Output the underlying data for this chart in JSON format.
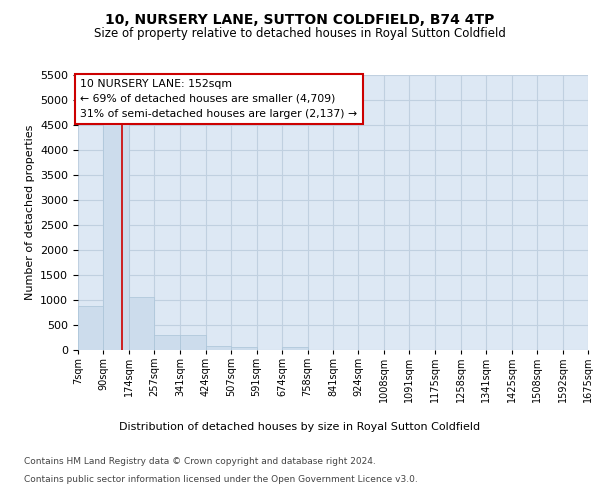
{
  "title": "10, NURSERY LANE, SUTTON COLDFIELD, B74 4TP",
  "subtitle": "Size of property relative to detached houses in Royal Sutton Coldfield",
  "xlabel": "Distribution of detached houses by size in Royal Sutton Coldfield",
  "ylabel": "Number of detached properties",
  "bar_color": "#ccdcec",
  "bar_edge_color": "#aac4d8",
  "grid_color": "#c0d0e0",
  "background_color": "#dde8f4",
  "bins": [
    7,
    90,
    174,
    257,
    341,
    424,
    507,
    591,
    674,
    758,
    841,
    924,
    1008,
    1091,
    1175,
    1258,
    1341,
    1425,
    1508,
    1592,
    1675
  ],
  "bar_heights": [
    880,
    4560,
    1060,
    305,
    305,
    80,
    65,
    0,
    65,
    0,
    0,
    0,
    0,
    0,
    0,
    0,
    0,
    0,
    0,
    0
  ],
  "red_line_x": 152,
  "ylim": [
    0,
    5500
  ],
  "yticks": [
    0,
    500,
    1000,
    1500,
    2000,
    2500,
    3000,
    3500,
    4000,
    4500,
    5000,
    5500
  ],
  "annotation_title": "10 NURSERY LANE: 152sqm",
  "annotation_line1": "← 69% of detached houses are smaller (4,709)",
  "annotation_line2": "31% of semi-detached houses are larger (2,137) →",
  "annotation_box_color": "#ffffff",
  "annotation_border_color": "#cc0000",
  "footer_line1": "Contains HM Land Registry data © Crown copyright and database right 2024.",
  "footer_line2": "Contains public sector information licensed under the Open Government Licence v3.0.",
  "tick_labels": [
    "7sqm",
    "90sqm",
    "174sqm",
    "257sqm",
    "341sqm",
    "424sqm",
    "507sqm",
    "591sqm",
    "674sqm",
    "758sqm",
    "841sqm",
    "924sqm",
    "1008sqm",
    "1091sqm",
    "1175sqm",
    "1258sqm",
    "1341sqm",
    "1425sqm",
    "1508sqm",
    "1592sqm",
    "1675sqm"
  ]
}
